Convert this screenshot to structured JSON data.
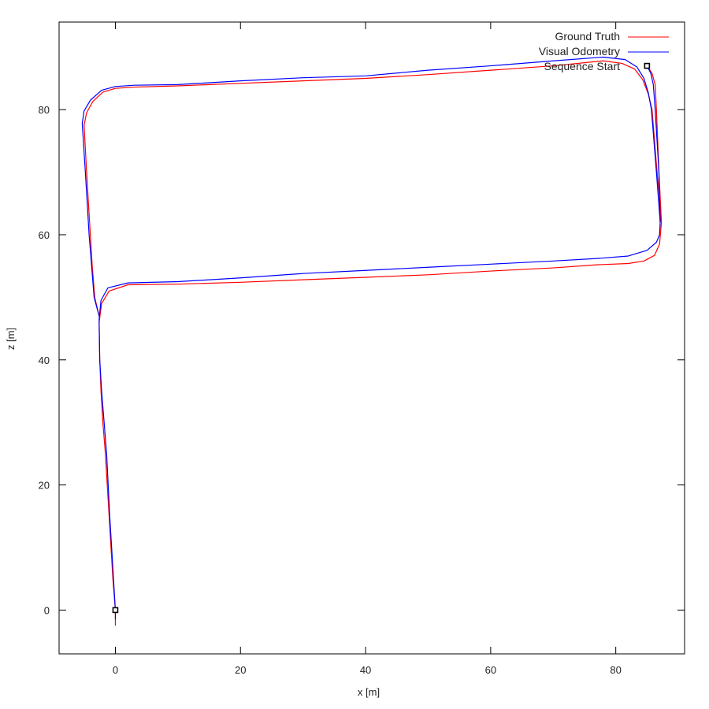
{
  "chart_data": {
    "type": "line",
    "xlabel": "x [m]",
    "ylabel": "z [m]",
    "xlim": [
      -9,
      91
    ],
    "ylim": [
      -7,
      94
    ],
    "xticks": [
      0,
      20,
      40,
      60,
      80
    ],
    "yticks": [
      0,
      20,
      40,
      60,
      80
    ],
    "grid": false,
    "legend_position": "top-right",
    "series": [
      {
        "name": "Ground Truth",
        "color": "#ff0000",
        "x": [
          85,
          85.8,
          86.3,
          86.5,
          86.7,
          86.9,
          87.2,
          87.3,
          87.0,
          86.2,
          84.5,
          82,
          77,
          70,
          60,
          50,
          40,
          30,
          20,
          10,
          2,
          -1.0,
          -2.2,
          -2.6,
          -2.5,
          -2.3,
          -2.0,
          -1.6,
          -1.0,
          -0.4,
          0.0,
          0.0
        ],
        "y": [
          87,
          85.8,
          84,
          80,
          75,
          70,
          64,
          62,
          58.5,
          56.7,
          55.8,
          55.4,
          55.2,
          54.7,
          54.2,
          53.6,
          53.2,
          52.8,
          52.4,
          52.1,
          52.0,
          51.0,
          49.0,
          46.0,
          40,
          35,
          30,
          25,
          15,
          5,
          0,
          -2.5
        ]
      },
      {
        "name": "Visual Odometry",
        "color": "#0000ff",
        "x": [
          85,
          85.6,
          86.0,
          86.3,
          86.6,
          86.9,
          87.1,
          87.0,
          86.5,
          85.0,
          82,
          77,
          70,
          60,
          50,
          40,
          30,
          20,
          10,
          2,
          -1.2,
          -2.3,
          -2.6,
          -2.5,
          -2.2,
          -1.8,
          -1.4,
          -0.9,
          -0.3,
          0.0,
          0.0
        ],
        "y": [
          87,
          85.8,
          84,
          80,
          75,
          70,
          62,
          60,
          58.8,
          57.5,
          56.6,
          56.2,
          55.8,
          55.3,
          54.8,
          54.3,
          53.8,
          53.1,
          52.5,
          52.3,
          51.5,
          49.5,
          46.5,
          40,
          35,
          30,
          25,
          15,
          5,
          0,
          -1.5
        ]
      }
    ],
    "markers": [
      {
        "name": "Sequence Start",
        "x": 0,
        "y": 0
      },
      {
        "name": "Sequence Start",
        "x": 85,
        "y": 87
      }
    ],
    "top_return": {
      "ground_truth_x": [
        87.2,
        87.0,
        86.6,
        86.2,
        85.8,
        85.2,
        84.3,
        83.0,
        81,
        78,
        70,
        60,
        50,
        40,
        30,
        20,
        10,
        3,
        0,
        -2,
        -3.6,
        -4.6,
        -5.0,
        -4.6,
        -4.3,
        -4.0,
        -3.7,
        -3.3,
        -2.6
      ],
      "ground_truth_y": [
        62,
        66,
        70,
        75,
        80,
        82.5,
        84.8,
        86.5,
        87.4,
        87.8,
        87.0,
        86.3,
        85.6,
        85.0,
        84.6,
        84.2,
        83.8,
        83.6,
        83.4,
        82.8,
        81.3,
        79.5,
        77.5,
        70,
        65,
        60,
        55,
        50,
        47
      ],
      "visual_odometry_x": [
        87.1,
        86.8,
        86.5,
        86.1,
        85.7,
        85.2,
        84.5,
        83.4,
        81.5,
        78,
        70,
        60,
        50,
        40,
        30,
        20,
        10,
        3,
        0,
        -2.2,
        -4.0,
        -5.0,
        -5.3,
        -4.8,
        -4.5,
        -4.2,
        -3.8,
        -3.4,
        -2.6
      ],
      "visual_odometry_y": [
        62,
        66,
        70,
        75,
        80,
        82.7,
        85.0,
        86.8,
        88.0,
        88.4,
        87.8,
        87.0,
        86.3,
        85.4,
        85.1,
        84.6,
        84.0,
        83.9,
        83.7,
        83.1,
        81.5,
        79.8,
        77.8,
        70,
        65,
        60,
        55,
        50,
        47
      ]
    }
  }
}
